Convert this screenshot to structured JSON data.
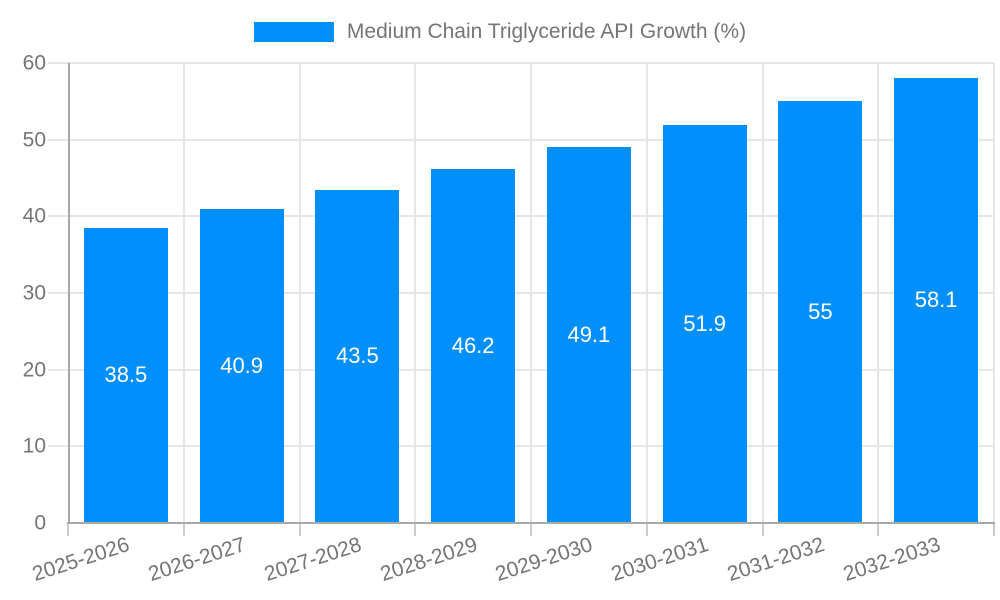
{
  "legend": {
    "items": [
      {
        "label": "Medium Chain Triglyceride API Growth (%)",
        "color": "#008ffb"
      }
    ]
  },
  "chart_data": {
    "type": "bar",
    "title": "",
    "categories": [
      "2025-2026",
      "2026-2027",
      "2027-2028",
      "2028-2029",
      "2029-2030",
      "2030-2031",
      "2031-2032",
      "2032-2033"
    ],
    "series": [
      {
        "name": "Medium Chain Triglyceride API Growth (%)",
        "values": [
          38.5,
          40.9,
          43.5,
          46.2,
          49.1,
          51.9,
          55,
          58.1
        ],
        "value_labels": [
          "38.5",
          "40.9",
          "43.5",
          "46.2",
          "49.1",
          "51.9",
          "55",
          "58.1"
        ],
        "color": "#008ffb"
      }
    ],
    "xlabel": "",
    "ylabel": "",
    "ylim": [
      0,
      60
    ],
    "yticks": [
      "0",
      "10",
      "20",
      "30",
      "40",
      "50",
      "60"
    ],
    "grid": true,
    "legend_position": "top-center",
    "value_labels_inside_bars": true
  },
  "colors": {
    "bar": "#008ffb",
    "grid_line": "#e6e6e6",
    "axis_line": "#a8a8a8",
    "tick_mark": "#cccccc",
    "axis_label_text": "#757575",
    "bar_value_text": "#ffffff",
    "background": "#ffffff"
  }
}
